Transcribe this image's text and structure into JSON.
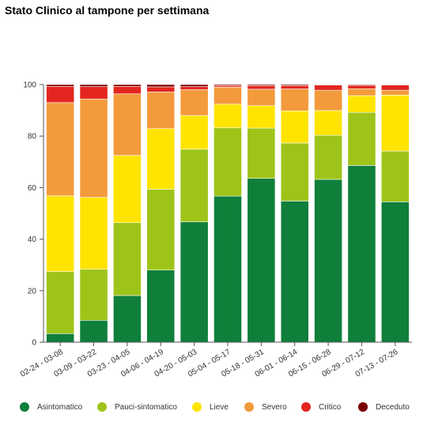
{
  "chart_data": {
    "type": "bar",
    "stacked": true,
    "title": "Stato Clinico al tampone per settimana",
    "xlabel": "",
    "ylabel": "",
    "ylim": [
      0,
      100
    ],
    "yticks": [
      0,
      20,
      40,
      60,
      80,
      100
    ],
    "grid": false,
    "legend_position": "bottom",
    "categories": [
      "02-24 - 03-08",
      "03-09 - 03-22",
      "03-23 - 04-05",
      "04-06 - 04-19",
      "04-20 - 05-03",
      "05-04 - 05-17",
      "05-18 - 05-31",
      "06-01 - 06-14",
      "06-15 - 06-28",
      "06-29 - 07-12",
      "07-13 - 07-26"
    ],
    "series": [
      {
        "name": "Asintomatico",
        "color": "#0f7f3a",
        "values": [
          3.3,
          8.5,
          18.1,
          28.0,
          46.7,
          56.7,
          63.6,
          54.8,
          63.2,
          68.6,
          54.5
        ]
      },
      {
        "name": "Pauci-sintomatico",
        "color": "#9fc419",
        "values": [
          24.1,
          19.8,
          28.3,
          31.4,
          28.2,
          26.5,
          19.5,
          22.5,
          17.1,
          20.6,
          19.7
        ]
      },
      {
        "name": "Lieve",
        "color": "#ffe400",
        "values": [
          29.4,
          27.9,
          26.1,
          23.5,
          13.1,
          9.2,
          8.7,
          12.5,
          9.6,
          6.5,
          21.7
        ]
      },
      {
        "name": "Severo",
        "color": "#f39b3c",
        "values": [
          36.2,
          38.2,
          23.9,
          14.2,
          10.0,
          6.6,
          6.4,
          8.5,
          7.9,
          2.7,
          1.9
        ]
      },
      {
        "name": "Critico",
        "color": "#e3261f",
        "values": [
          6.3,
          4.8,
          2.9,
          2.0,
          1.2,
          0.6,
          1.4,
          1.3,
          2.0,
          1.3,
          2.0
        ]
      },
      {
        "name": "Deceduto",
        "color": "#7a0000",
        "values": [
          0.7,
          0.8,
          0.7,
          0.9,
          0.8,
          0.4,
          0.4,
          0.4,
          0.2,
          0.3,
          0.2
        ]
      }
    ]
  }
}
